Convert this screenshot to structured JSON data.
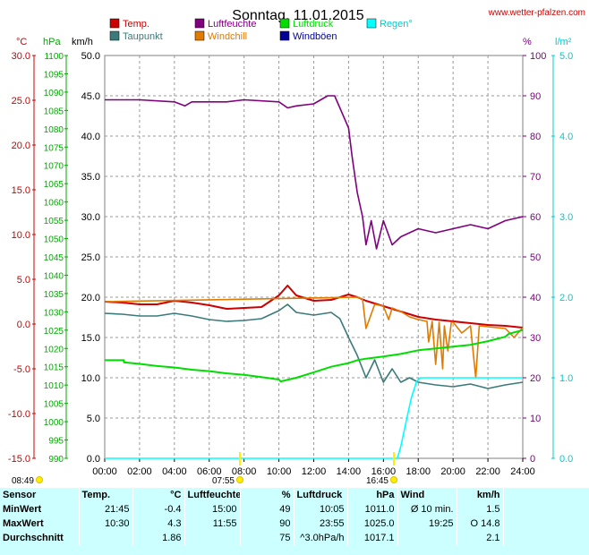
{
  "title": "Sonntag, 11.01.2015",
  "site": "www.wetter-pfalzen.com",
  "legend": [
    {
      "name": "Temp.",
      "color": "#cc0000"
    },
    {
      "name": "Taupunkt",
      "color": "#3b7a7a"
    },
    {
      "name": "Luftfeuchte",
      "color": "#800080"
    },
    {
      "name": "Windchill",
      "color": "#e07b00"
    },
    {
      "name": "Luftdruck",
      "color": "#00dd00"
    },
    {
      "name": "Windböen",
      "color": "#000099"
    },
    {
      "name": "Regen°",
      "color": "#00ffff"
    }
  ],
  "sun": {
    "rise": "08:49",
    "noon": "07:55",
    "set": "16:45"
  },
  "chart_data": {
    "type": "line",
    "xlabel": "",
    "x_ticks": [
      "00:00",
      "02:00",
      "04:00",
      "06:00",
      "08:00",
      "10:00",
      "12:00",
      "14:00",
      "16:00",
      "18:00",
      "20:00",
      "22:00",
      "24:00"
    ],
    "axes": {
      "celsius": {
        "unit": "°C",
        "range": [
          -15,
          30
        ],
        "ticks": [
          "30.0",
          "25.0",
          "20.0",
          "15.0",
          "10.0",
          "5.0",
          "0.0",
          "-5.0",
          "-10.0",
          "-15.0"
        ],
        "color": "#cc0000"
      },
      "hpa": {
        "unit": "hPa",
        "range": [
          990,
          1100
        ],
        "ticks": [
          "1100",
          "1095",
          "1090",
          "1085",
          "1080",
          "1075",
          "1070",
          "1065",
          "1060",
          "1055",
          "1050",
          "1045",
          "1040",
          "1035",
          "1030",
          "1025",
          "1020",
          "1015",
          "1010",
          "1005",
          "1000",
          "995",
          "990"
        ],
        "color": "#00aa00"
      },
      "kmh": {
        "unit": "km/h",
        "range": [
          0,
          50
        ],
        "ticks": [
          "50.0",
          "45.0",
          "40.0",
          "35.0",
          "30.0",
          "25.0",
          "20.0",
          "15.0",
          "10.0",
          "5.0",
          "0.0"
        ],
        "color": "#000000"
      },
      "percent": {
        "unit": "%",
        "range": [
          0,
          100
        ],
        "ticks": [
          "100",
          "90",
          "80",
          "70",
          "60",
          "50",
          "40",
          "30",
          "20",
          "10",
          "0"
        ],
        "color": "#800080"
      },
      "rain": {
        "unit": "l/m²",
        "range": [
          0,
          5
        ],
        "ticks": [
          "5.0",
          "4.0",
          "3.0",
          "2.0",
          "1.0",
          "0.0"
        ],
        "color": "#00cccc"
      }
    },
    "series": [
      {
        "name": "Luftfeuchte",
        "axis": "percent",
        "color": "#800080",
        "x": [
          0,
          2,
          4,
          4.6,
          5,
          7,
          8,
          10,
          10.5,
          11,
          12,
          12.8,
          13.2,
          13.5,
          14,
          14.2,
          14.5,
          14.8,
          15,
          15.3,
          15.6,
          16,
          16.5,
          17,
          17.5,
          18,
          19,
          20,
          21,
          22,
          23,
          24
        ],
        "y": [
          89,
          89,
          88.5,
          87.5,
          88.5,
          88.5,
          89,
          88.5,
          87,
          87.5,
          88,
          90,
          90,
          87,
          82,
          75,
          66,
          60,
          53,
          59,
          52,
          59,
          53,
          55,
          56,
          57,
          56,
          57,
          58,
          57,
          59,
          60
        ]
      },
      {
        "name": "Temp.",
        "axis": "celsius",
        "x": [
          0,
          1,
          2,
          3,
          4,
          5,
          6,
          7,
          8,
          9,
          10,
          10.5,
          11,
          12,
          13,
          14,
          14.5,
          15,
          16,
          17,
          18,
          19,
          20,
          21,
          22,
          23,
          24
        ],
        "y": [
          2.5,
          2.4,
          2.2,
          2.2,
          2.6,
          2.4,
          2.1,
          1.7,
          1.8,
          1.9,
          3.2,
          4.3,
          3.2,
          2.6,
          2.7,
          3.3,
          3.0,
          2.6,
          2.0,
          1.4,
          0.8,
          0.5,
          0.3,
          0.1,
          -0.1,
          -0.2,
          -0.4
        ]
      },
      {
        "name": "Taupunkt",
        "axis": "celsius",
        "x": [
          0,
          1,
          2,
          3,
          4,
          5,
          6,
          7,
          8,
          9,
          10,
          10.5,
          11,
          12,
          13,
          13.5,
          14,
          14.5,
          15,
          15.5,
          16,
          16.5,
          17,
          17.5,
          18,
          19,
          20,
          21,
          22,
          23,
          24
        ],
        "y": [
          1.2,
          1.1,
          0.9,
          0.9,
          1.2,
          0.9,
          0.5,
          0.3,
          0.4,
          0.6,
          1.5,
          2.2,
          1.3,
          1.0,
          1.3,
          0.6,
          -1.5,
          -3.5,
          -6.0,
          -4.0,
          -6.5,
          -5.0,
          -6.5,
          -6.0,
          -6.5,
          -6.8,
          -7.0,
          -6.7,
          -7.2,
          -6.8,
          -6.5
        ]
      },
      {
        "name": "Windchill",
        "axis": "celsius",
        "x": [
          0,
          14.5,
          14.8,
          15,
          15.5,
          16,
          16.3,
          16.5,
          17,
          17.5,
          18,
          18.5,
          18.6,
          18.8,
          19,
          19.2,
          19.4,
          19.5,
          19.7,
          19.9,
          20,
          20.5,
          21,
          21.3,
          21.5,
          22,
          22.5,
          23,
          23.5,
          24
        ],
        "y": [
          2.5,
          3.0,
          2.8,
          -0.5,
          2.2,
          2.0,
          0.5,
          1.8,
          1.4,
          0.8,
          0.5,
          0.3,
          -2.0,
          0.3,
          -4.5,
          0.2,
          -5.0,
          -0.2,
          -3.0,
          0.2,
          0.2,
          -1.0,
          -0.2,
          -6.0,
          -0.2,
          -0.3,
          -0.4,
          -0.5,
          -1.5,
          -0.4
        ]
      },
      {
        "name": "Luftdruck",
        "axis": "hpa",
        "x": [
          0,
          1.1,
          1.1,
          2,
          3,
          4,
          5,
          6,
          7,
          8,
          9,
          10,
          10.1,
          11,
          12,
          13,
          14,
          14.5,
          15,
          16,
          17,
          18,
          19,
          20,
          21,
          22,
          23,
          23.2,
          24
        ],
        "y": [
          1016.8,
          1016.8,
          1016.2,
          1015.8,
          1015.2,
          1014.8,
          1014.2,
          1013.8,
          1013.2,
          1012.8,
          1012.2,
          1011.5,
          1011.0,
          1012.0,
          1013.5,
          1015.0,
          1016.0,
          1016.8,
          1017.2,
          1017.8,
          1018.5,
          1019.5,
          1020.0,
          1020.5,
          1021.0,
          1022.0,
          1023.2,
          1024.0,
          1025.0
        ]
      },
      {
        "name": "Regen°",
        "axis": "rain",
        "x": [
          0,
          16.8,
          17,
          17.3,
          17.6,
          17.9,
          18.1,
          18.3,
          18.5,
          24
        ],
        "y": [
          0,
          0,
          0.15,
          0.45,
          0.75,
          0.95,
          1.0,
          1.0,
          1.0,
          1.0
        ]
      }
    ]
  },
  "stats": {
    "header": [
      "Sensor",
      "Temp.",
      "°C",
      "Luftfeuchte",
      "%",
      "Luftdruck",
      "hPa",
      "Wind",
      "km/h"
    ],
    "rows": [
      {
        "label": "MinWert",
        "c1": "21:45",
        "c2": "-0.4",
        "c3": "15:00",
        "c4": "49",
        "c5": "10:05",
        "c6": "1011.0",
        "c7": "Ø 10 min.",
        "c8": "1.5"
      },
      {
        "label": "MaxWert",
        "c1": "10:30",
        "c2": "4.3",
        "c3": "11:55",
        "c4": "90",
        "c5": "23:55",
        "c6": "1025.0",
        "c7": "19:25",
        "c8": "O 14.8"
      },
      {
        "label": "Durchschnitt",
        "c1": "",
        "c2": "1.86",
        "c3": "",
        "c4": "75",
        "c5": "^3.0hPa/h",
        "c6": "1017.1",
        "c7": "",
        "c8": "2.1"
      }
    ]
  }
}
